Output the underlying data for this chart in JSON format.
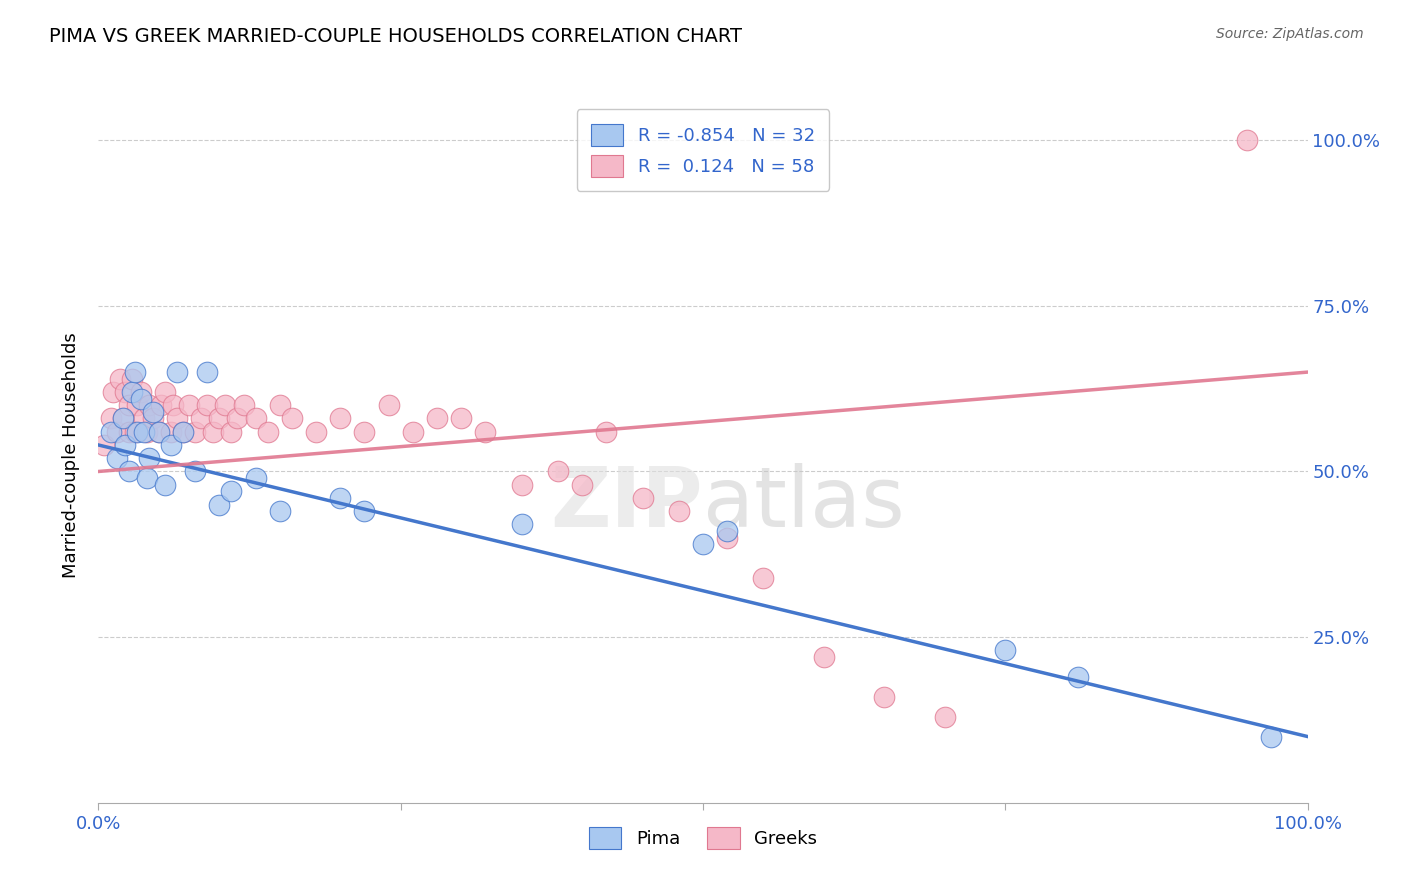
{
  "title": "PIMA VS GREEK MARRIED-COUPLE HOUSEHOLDS CORRELATION CHART",
  "source": "Source: ZipAtlas.com",
  "ylabel": "Married-couple Households",
  "pima_R": -0.854,
  "pima_N": 32,
  "greek_R": 0.124,
  "greek_N": 58,
  "pima_color": "#A8C8F0",
  "greek_color": "#F5B8C8",
  "pima_line_color": "#4477CC",
  "greek_line_color": "#E07890",
  "pima_x": [
    0.01,
    0.015,
    0.02,
    0.022,
    0.025,
    0.028,
    0.03,
    0.032,
    0.035,
    0.038,
    0.04,
    0.042,
    0.045,
    0.05,
    0.055,
    0.06,
    0.065,
    0.07,
    0.08,
    0.09,
    0.1,
    0.11,
    0.13,
    0.15,
    0.2,
    0.22,
    0.35,
    0.5,
    0.52,
    0.75,
    0.81,
    0.97
  ],
  "pima_y": [
    0.56,
    0.52,
    0.58,
    0.54,
    0.5,
    0.62,
    0.65,
    0.56,
    0.61,
    0.56,
    0.49,
    0.52,
    0.59,
    0.56,
    0.48,
    0.54,
    0.65,
    0.56,
    0.5,
    0.65,
    0.45,
    0.47,
    0.49,
    0.44,
    0.46,
    0.44,
    0.42,
    0.39,
    0.41,
    0.23,
    0.19,
    0.1
  ],
  "greek_x": [
    0.005,
    0.01,
    0.012,
    0.015,
    0.018,
    0.02,
    0.022,
    0.025,
    0.025,
    0.028,
    0.03,
    0.032,
    0.035,
    0.038,
    0.04,
    0.042,
    0.045,
    0.05,
    0.052,
    0.055,
    0.06,
    0.062,
    0.065,
    0.07,
    0.075,
    0.08,
    0.085,
    0.09,
    0.095,
    0.1,
    0.105,
    0.11,
    0.115,
    0.12,
    0.13,
    0.14,
    0.15,
    0.16,
    0.18,
    0.2,
    0.22,
    0.24,
    0.26,
    0.28,
    0.3,
    0.32,
    0.35,
    0.38,
    0.4,
    0.42,
    0.45,
    0.48,
    0.52,
    0.55,
    0.6,
    0.65,
    0.7,
    0.95
  ],
  "greek_y": [
    0.54,
    0.58,
    0.62,
    0.56,
    0.64,
    0.58,
    0.62,
    0.56,
    0.6,
    0.64,
    0.56,
    0.6,
    0.62,
    0.58,
    0.56,
    0.6,
    0.58,
    0.56,
    0.6,
    0.62,
    0.56,
    0.6,
    0.58,
    0.56,
    0.6,
    0.56,
    0.58,
    0.6,
    0.56,
    0.58,
    0.6,
    0.56,
    0.58,
    0.6,
    0.58,
    0.56,
    0.6,
    0.58,
    0.56,
    0.58,
    0.56,
    0.6,
    0.56,
    0.58,
    0.58,
    0.56,
    0.48,
    0.5,
    0.48,
    0.56,
    0.46,
    0.44,
    0.4,
    0.34,
    0.22,
    0.16,
    0.13,
    1.0
  ],
  "pima_line": [
    0.54,
    0.1
  ],
  "greek_line": [
    0.5,
    0.65
  ],
  "xlim": [
    0.0,
    1.0
  ],
  "ylim": [
    0.0,
    1.05
  ]
}
